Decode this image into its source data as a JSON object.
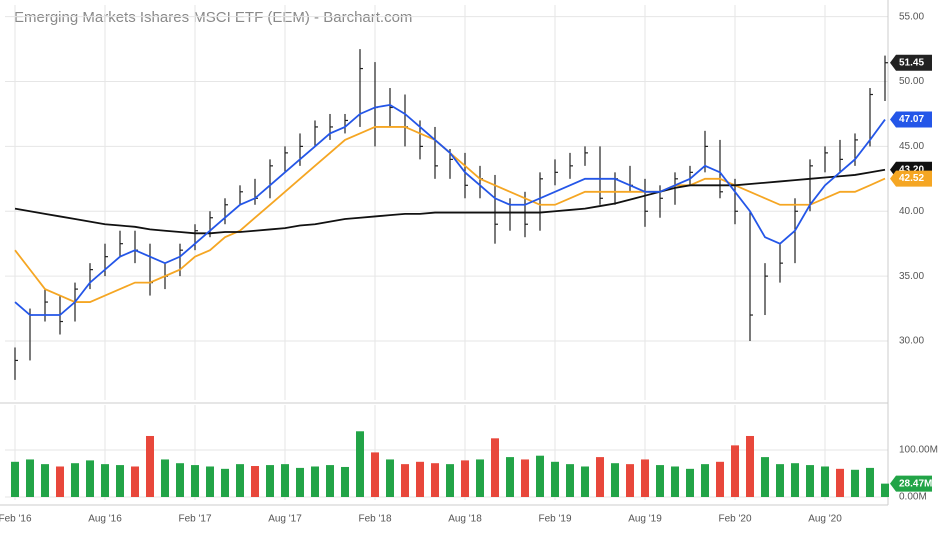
{
  "chart_data": {
    "type": "ohlc",
    "title": "Emerging Markets Ishares MSCI ETF (EEM) - Barchart.com",
    "categories": [
      "Feb '16",
      null,
      null,
      null,
      null,
      null,
      "Aug '16",
      null,
      null,
      null,
      null,
      null,
      "Feb '17",
      null,
      null,
      null,
      null,
      null,
      "Aug '17",
      null,
      null,
      null,
      null,
      null,
      "Feb '18",
      null,
      null,
      null,
      null,
      null,
      "Aug '18",
      null,
      null,
      null,
      null,
      null,
      "Feb '19",
      null,
      null,
      null,
      null,
      null,
      "Aug '19",
      null,
      null,
      null,
      null,
      null,
      "Feb '20",
      null,
      null,
      null,
      null,
      null,
      "Aug '20",
      null,
      null,
      null,
      null
    ],
    "close": [
      28.5,
      32,
      33,
      31.5,
      34,
      35.5,
      36.5,
      37.5,
      37,
      34.5,
      35,
      37,
      38.5,
      39.5,
      40.5,
      41.5,
      41,
      43.5,
      44.5,
      45,
      46.5,
      46.5,
      47,
      51,
      48,
      48,
      46.5,
      45,
      43.5,
      44,
      42,
      42.5,
      39,
      40.5,
      39,
      42.5,
      43,
      43.5,
      44.5,
      41,
      42.5,
      42,
      40,
      41,
      42.5,
      43,
      45,
      41.5,
      40,
      32,
      35,
      36,
      40,
      43.5,
      44.5,
      44,
      45.5,
      49,
      51.45
    ],
    "high": [
      29.5,
      32.5,
      34,
      33.5,
      34.5,
      36,
      37.5,
      38.5,
      38.5,
      37.5,
      36,
      37.5,
      39,
      40,
      41,
      42,
      42.5,
      44,
      45,
      46,
      47,
      47.5,
      47.5,
      52.5,
      51.5,
      49.5,
      49,
      47,
      46.5,
      44.8,
      44.5,
      43.5,
      42.8,
      41,
      41.5,
      43,
      44,
      44.5,
      45,
      45,
      43,
      43.5,
      42.5,
      42,
      43,
      43.5,
      46.2,
      45.5,
      42.5,
      40,
      36,
      37.5,
      41,
      44,
      45,
      45.5,
      46,
      49.5,
      52
    ],
    "low": [
      27,
      28.5,
      31.5,
      30.5,
      31.5,
      34,
      35,
      36.5,
      36,
      33.5,
      34,
      35,
      37,
      38,
      39,
      40.5,
      40.5,
      41,
      43,
      43.5,
      45,
      45.5,
      46,
      46.5,
      45,
      46.5,
      45,
      44,
      42.5,
      42.5,
      41,
      41,
      37.5,
      38.5,
      38,
      38.5,
      42,
      42.5,
      43.5,
      40.5,
      40.5,
      41.5,
      38.8,
      39.5,
      40.5,
      42,
      43,
      41,
      39,
      30,
      32,
      34.5,
      36,
      40,
      43,
      43,
      43.5,
      45,
      48.5
    ],
    "bar_color": "#222222",
    "moving_averages": [
      {
        "color": "#f5a623",
        "last_label": "42.52",
        "values": [
          37,
          35.5,
          34,
          33.5,
          33,
          33,
          33.5,
          34,
          34.5,
          34.5,
          35,
          35.5,
          36.5,
          37,
          38,
          38.5,
          39.5,
          40.5,
          41.5,
          42.5,
          43.5,
          44.5,
          45.5,
          46,
          46.5,
          46.5,
          46.5,
          46,
          45.5,
          44.5,
          43.5,
          42.5,
          42,
          41.5,
          41,
          40.5,
          40.5,
          41,
          41.5,
          41.5,
          41.5,
          41.5,
          41.5,
          41.5,
          42,
          42,
          42.5,
          42.5,
          42,
          41.5,
          41,
          40.5,
          40.5,
          40.5,
          41,
          41.5,
          41.5,
          42,
          42.52
        ]
      },
      {
        "color": "#111111",
        "last_label": "43.20",
        "values": [
          40.2,
          40,
          39.8,
          39.6,
          39.4,
          39.2,
          39,
          38.9,
          38.8,
          38.6,
          38.5,
          38.4,
          38.3,
          38.3,
          38.4,
          38.4,
          38.5,
          38.6,
          38.7,
          38.9,
          39,
          39.2,
          39.4,
          39.5,
          39.6,
          39.7,
          39.8,
          39.8,
          39.9,
          39.9,
          39.9,
          39.9,
          39.9,
          39.9,
          39.9,
          39.9,
          40,
          40.1,
          40.2,
          40.4,
          40.6,
          40.9,
          41.2,
          41.5,
          41.8,
          42,
          42,
          42,
          42,
          42.1,
          42.2,
          42.3,
          42.4,
          42.5,
          42.6,
          42.7,
          42.8,
          43,
          43.2
        ]
      },
      {
        "color": "#2456e8",
        "last_label": "47.07",
        "values": [
          33,
          32,
          32,
          32,
          33,
          34.5,
          35.5,
          36.5,
          37,
          36.5,
          36,
          36.5,
          37.5,
          38.5,
          39.5,
          40.5,
          41,
          42,
          43,
          44,
          45,
          46,
          46.5,
          47.5,
          48,
          48.2,
          47.5,
          46.5,
          45.5,
          44.5,
          43,
          42,
          41,
          40.5,
          40.5,
          41,
          41.5,
          42,
          42.5,
          42.5,
          42.5,
          42,
          41.5,
          41.5,
          42,
          42.5,
          43.5,
          43,
          41.5,
          40,
          38,
          37.5,
          38.5,
          40.5,
          42,
          43,
          44,
          45.5,
          47.07
        ]
      }
    ],
    "ylim": [
      25.45,
      55.9
    ],
    "yticks": [
      {
        "value": 30,
        "label": "30.00"
      },
      {
        "value": 35,
        "label": "35.00"
      },
      {
        "value": 40,
        "label": "40.00"
      },
      {
        "value": 45,
        "label": "45.00"
      },
      {
        "value": 50,
        "label": "50.00"
      },
      {
        "value": 55,
        "label": "55.00"
      }
    ],
    "volume": [
      75,
      80,
      70,
      65,
      72,
      78,
      70,
      68,
      65,
      130,
      80,
      72,
      68,
      65,
      60,
      70,
      66,
      68,
      70,
      62,
      65,
      68,
      64,
      140,
      95,
      80,
      70,
      75,
      72,
      70,
      78,
      80,
      125,
      85,
      80,
      88,
      75,
      70,
      65,
      85,
      72,
      70,
      80,
      68,
      65,
      60,
      70,
      75,
      110,
      130,
      85,
      70,
      72,
      68,
      65,
      60,
      58,
      62,
      28.47
    ],
    "volume_last_label": "28.47M",
    "volume_colors": {
      "up": "#22a447",
      "down": "#e8473b"
    },
    "y2lim": [
      0,
      196
    ],
    "y2ticks": [
      {
        "value": 0,
        "label": "0.00M"
      },
      {
        "value": 100,
        "label": "100.00M"
      }
    ],
    "grid": true
  }
}
